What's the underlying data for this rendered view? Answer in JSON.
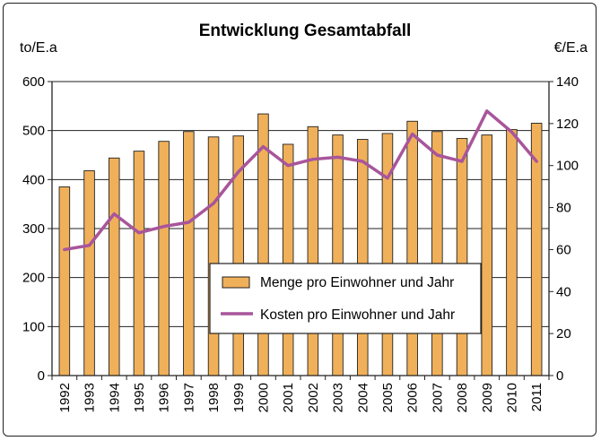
{
  "chart_data": {
    "type": "bar+line",
    "title": "Entwicklung Gesamtabfall",
    "ylabel_left": "to/E.a",
    "ylabel_right": "€/E.a",
    "categories": [
      "1992",
      "1993",
      "1994",
      "1995",
      "1996",
      "1997",
      "1998",
      "1999",
      "2000",
      "2001",
      "2002",
      "2003",
      "2004",
      "2005",
      "2006",
      "2007",
      "2008",
      "2009",
      "2010",
      "2011"
    ],
    "ylim_left": [
      0,
      600
    ],
    "yticks_left": [
      "0",
      "100",
      "200",
      "300",
      "400",
      "500",
      "600"
    ],
    "ylim_right": [
      0,
      140
    ],
    "yticks_right": [
      "0",
      "20",
      "40",
      "60",
      "80",
      "100",
      "120",
      "140"
    ],
    "grid": true,
    "legend_position": "center-right",
    "series": [
      {
        "name": "Menge pro Einwohner und Jahr",
        "type": "bar",
        "axis": "left",
        "color": "#F0B05A",
        "values": [
          385,
          418,
          444,
          458,
          478,
          498,
          487,
          489,
          534,
          472,
          508,
          491,
          482,
          494,
          519,
          498,
          484,
          491,
          502,
          515
        ]
      },
      {
        "name": "Kosten pro Einwohner und Jahr",
        "type": "line",
        "axis": "right",
        "color": "#A8559B",
        "values": [
          60,
          62,
          77,
          68,
          71,
          73,
          82,
          97,
          109,
          100,
          103,
          104,
          102,
          94,
          115,
          105,
          102,
          126,
          116,
          102
        ]
      }
    ]
  }
}
